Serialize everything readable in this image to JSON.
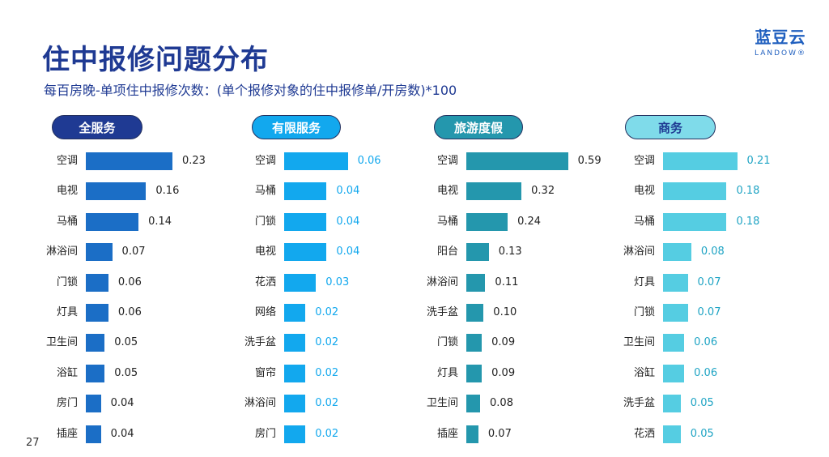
{
  "header": {
    "title": "住中报修问题分布",
    "subtitle": "每百房晚-单项住中报修次数：(单个报修对象的住中报修单/开房数)*100",
    "logo_cn": "蓝豆云",
    "logo_en": "LANDOW®",
    "page_number": "27"
  },
  "colors": {
    "title": "#1f3a93",
    "panel1_bar": "#1b6ec6",
    "panel2_bar": "#12a8ee",
    "panel3_bar": "#2497ad",
    "panel4_bar": "#55cde2"
  },
  "chart_data": [
    {
      "type": "bar",
      "title": "全服务",
      "categories": [
        "空调",
        "电视",
        "马桶",
        "淋浴间",
        "门锁",
        "灯具",
        "卫生间",
        "浴缸",
        "房门",
        "插座"
      ],
      "values": [
        0.23,
        0.16,
        0.14,
        0.07,
        0.06,
        0.06,
        0.05,
        0.05,
        0.04,
        0.04
      ],
      "value_labels": [
        "0.23",
        "0.16",
        "0.14",
        "0.07",
        "0.06",
        "0.06",
        "0.05",
        "0.05",
        "0.04",
        "0.04"
      ],
      "orientation": "horizontal",
      "grid": false
    },
    {
      "type": "bar",
      "title": "有限服务",
      "categories": [
        "空调",
        "马桶",
        "门锁",
        "电视",
        "花洒",
        "网络",
        "洗手盆",
        "窗帘",
        "淋浴间",
        "房门"
      ],
      "values": [
        0.06,
        0.04,
        0.04,
        0.04,
        0.03,
        0.02,
        0.02,
        0.02,
        0.02,
        0.02
      ],
      "value_labels": [
        "0.06",
        "0.04",
        "0.04",
        "0.04",
        "0.03",
        "0.02",
        "0.02",
        "0.02",
        "0.02",
        "0.02"
      ],
      "orientation": "horizontal",
      "grid": false
    },
    {
      "type": "bar",
      "title": "旅游度假",
      "categories": [
        "空调",
        "电视",
        "马桶",
        "阳台",
        "淋浴间",
        "洗手盆",
        "门锁",
        "灯具",
        "卫生间",
        "插座"
      ],
      "values": [
        0.59,
        0.32,
        0.24,
        0.13,
        0.11,
        0.1,
        0.09,
        0.09,
        0.08,
        0.07
      ],
      "value_labels": [
        "0.59",
        "0.32",
        "0.24",
        "0.13",
        "0.11",
        "0.10",
        "0.09",
        "0.09",
        "0.08",
        "0.07"
      ],
      "orientation": "horizontal",
      "grid": false
    },
    {
      "type": "bar",
      "title": "商务",
      "categories": [
        "空调",
        "电视",
        "马桶",
        "淋浴间",
        "灯具",
        "门锁",
        "卫生间",
        "浴缸",
        "洗手盆",
        "花洒"
      ],
      "values": [
        0.21,
        0.18,
        0.18,
        0.08,
        0.07,
        0.07,
        0.06,
        0.06,
        0.05,
        0.05
      ],
      "value_labels": [
        "0.21",
        "0.18",
        "0.18",
        "0.08",
        "0.07",
        "0.07",
        "0.06",
        "0.06",
        "0.05",
        "0.05"
      ],
      "orientation": "horizontal",
      "grid": false
    }
  ]
}
